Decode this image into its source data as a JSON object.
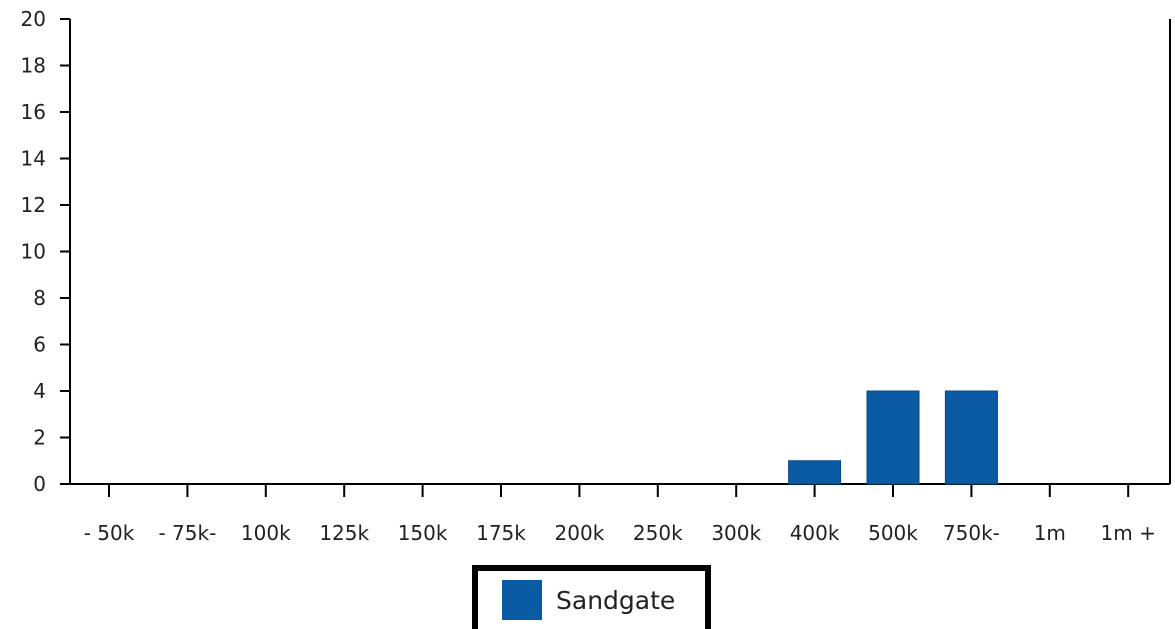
{
  "chart_data": {
    "type": "bar",
    "categories": [
      "- 50k",
      "- 75k",
      "- 100k",
      "- 125k",
      "- 150k",
      "- 175k",
      "- 200k",
      "- 250k",
      "- 300k",
      "- 400k",
      "- 500k",
      "- 750k",
      "- 1m",
      "1m +"
    ],
    "category_labels": [
      "- 50k",
      "- 75k-",
      "100k",
      "125k",
      "150k",
      "175k",
      "200k",
      "250k",
      "300k",
      "400k",
      "500k",
      "750k-",
      "1m",
      "1m +"
    ],
    "series": [
      {
        "name": "Sandgate",
        "values": [
          0,
          0,
          0,
          0,
          0,
          0,
          0,
          0,
          0,
          1,
          4,
          4,
          0,
          0
        ]
      }
    ],
    "ylim": [
      0,
      20
    ],
    "yticks": [
      "0",
      "2",
      "4",
      "6",
      "8",
      "10",
      "12",
      "14",
      "16",
      "18",
      "20"
    ],
    "grid": false,
    "legend_position": "bottom-center",
    "colors": {
      "bar": "#0a5aa4",
      "axis": "#000000"
    }
  }
}
